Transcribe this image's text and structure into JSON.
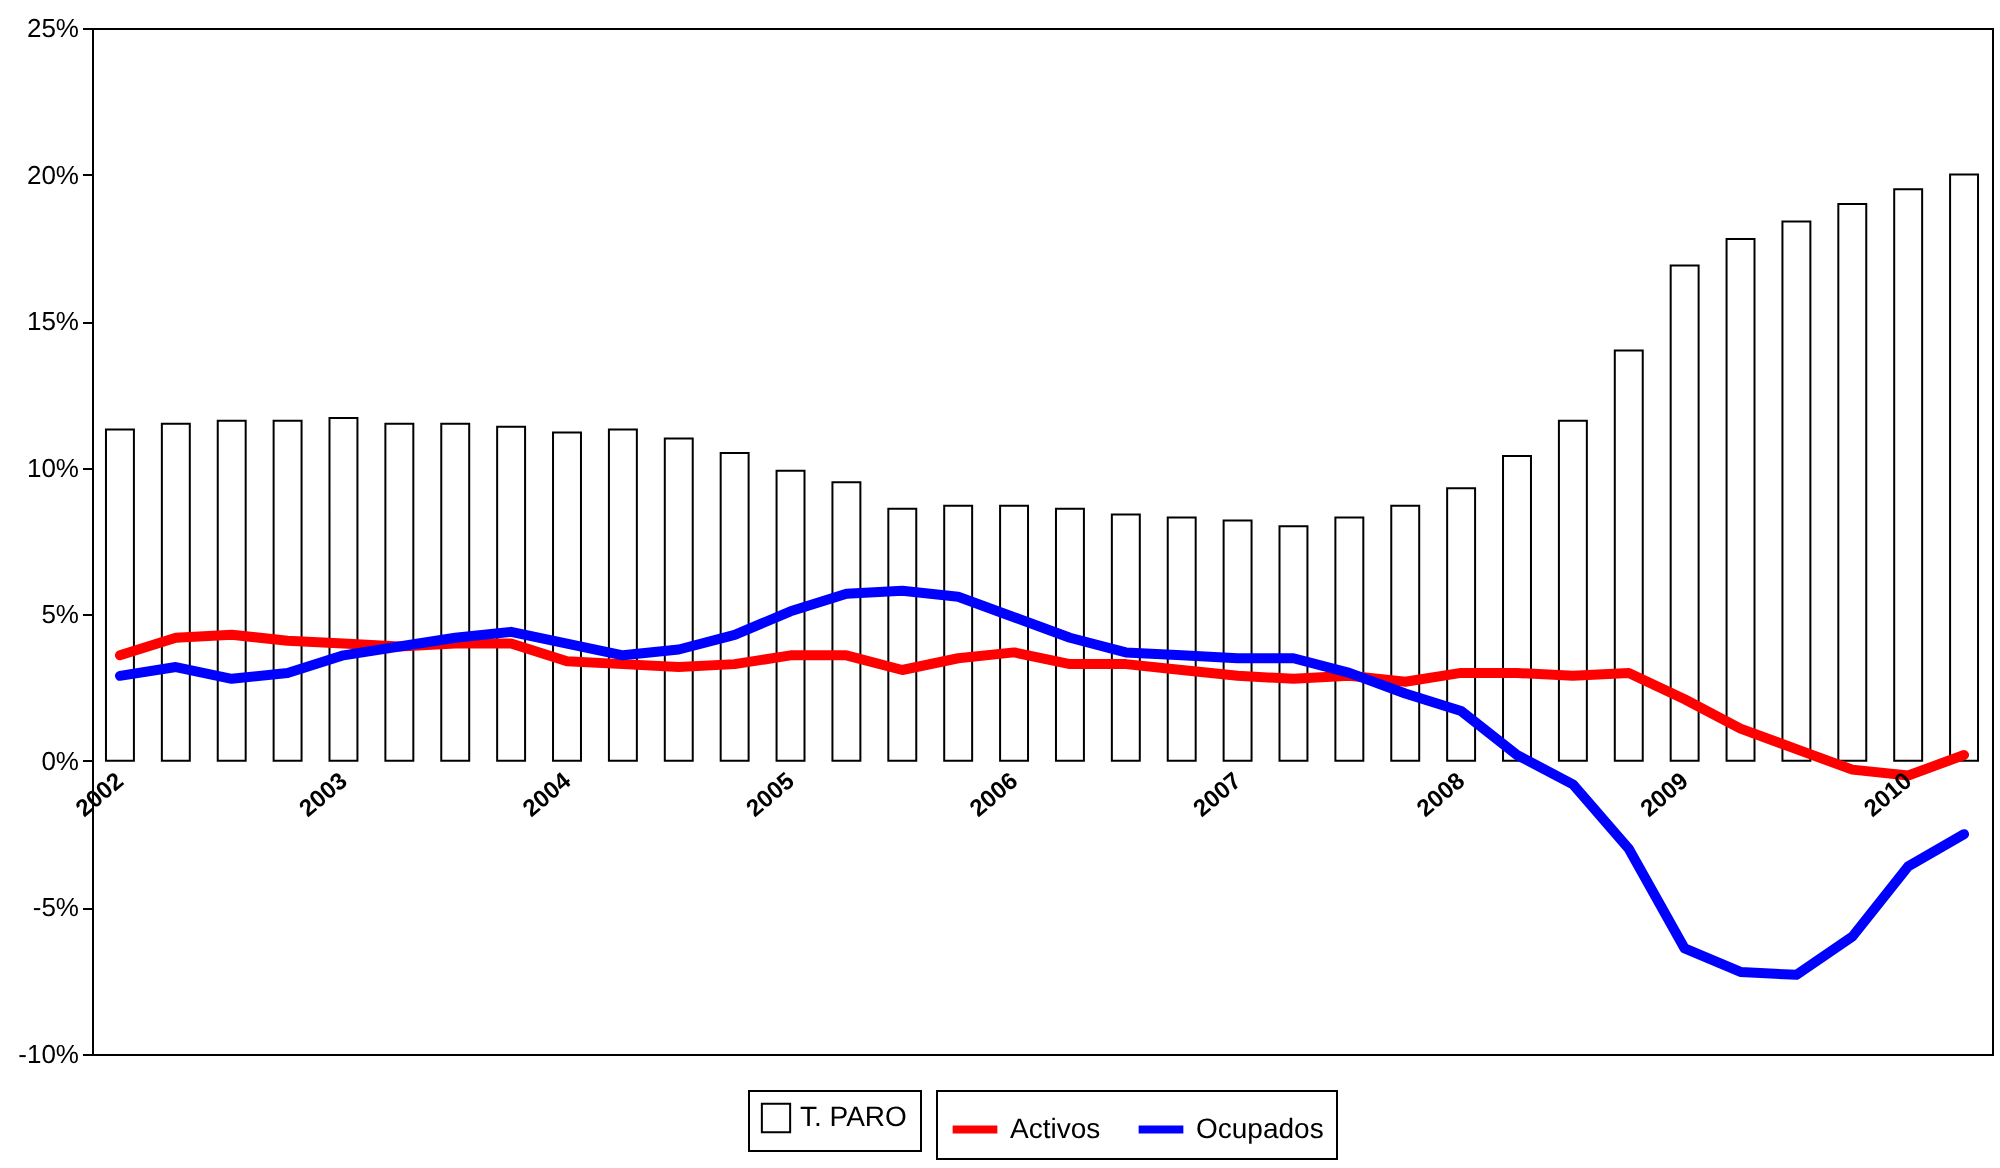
{
  "chart_data": {
    "type": "bar",
    "categories": [
      "2002",
      null,
      null,
      null,
      "2003",
      null,
      null,
      null,
      "2004",
      null,
      null,
      null,
      "2005",
      null,
      null,
      null,
      "2006",
      null,
      null,
      null,
      "2007",
      null,
      null,
      null,
      "2008",
      null,
      null,
      null,
      "2009",
      null,
      null,
      null,
      "2010",
      null
    ],
    "series": [
      {
        "name": "T. PARO",
        "color": "#ffffff",
        "values": [
          11.3,
          11.5,
          11.6,
          11.6,
          11.7,
          11.5,
          11.5,
          11.4,
          11.2,
          11.3,
          11.0,
          10.5,
          9.9,
          9.5,
          8.6,
          8.7,
          8.7,
          8.6,
          8.4,
          8.3,
          8.2,
          8.0,
          8.3,
          8.7,
          9.3,
          10.4,
          11.6,
          14.0,
          16.9,
          17.8,
          18.4,
          19.0,
          19.5,
          20.0
        ]
      },
      {
        "name": "Activos",
        "type": "line",
        "color": "#ff0000",
        "values": [
          3.6,
          4.2,
          4.3,
          4.1,
          4.0,
          3.9,
          4.0,
          4.0,
          3.4,
          3.3,
          3.2,
          3.3,
          3.6,
          3.6,
          3.1,
          3.5,
          3.7,
          3.3,
          3.3,
          3.1,
          2.9,
          2.8,
          2.9,
          2.7,
          3.0,
          3.0,
          2.9,
          3.0,
          2.1,
          1.1,
          0.4,
          -0.3,
          -0.5,
          0.2
        ]
      },
      {
        "name": "Ocupados",
        "type": "line",
        "color": "#0000ff",
        "values": [
          2.9,
          3.2,
          2.8,
          3.0,
          3.6,
          3.9,
          4.2,
          4.4,
          4.0,
          3.6,
          3.8,
          4.3,
          5.1,
          5.7,
          5.8,
          5.6,
          4.9,
          4.2,
          3.7,
          3.6,
          3.5,
          3.5,
          3.0,
          2.3,
          1.7,
          0.2,
          -0.8,
          -3.0,
          -6.4,
          -7.2,
          -7.3,
          -6.0,
          -3.6,
          -2.5
        ]
      }
    ],
    "ylim": [
      -10,
      25
    ],
    "yticks": [
      {
        "value": -10,
        "label": "-10%"
      },
      {
        "value": -5,
        "label": "-5%"
      },
      {
        "value": 0,
        "label": "0%"
      },
      {
        "value": 5,
        "label": "5%"
      },
      {
        "value": 10,
        "label": "10%"
      },
      {
        "value": 15,
        "label": "15%"
      },
      {
        "value": 20,
        "label": "20%"
      },
      {
        "value": 25,
        "label": "25%"
      }
    ],
    "grid": false,
    "legend": "bottom",
    "marker": "none",
    "line_style": "solid"
  }
}
